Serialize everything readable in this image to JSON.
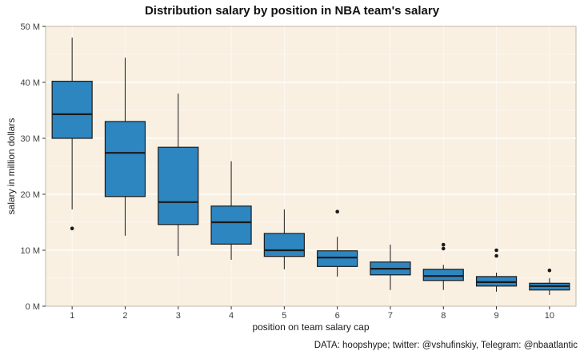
{
  "caption": "DATA: hoopshype; twitter: @vshufinskiy, Telegram: @nbaatlantic",
  "chart_data": {
    "type": "boxplot",
    "title": "Distribution salary by position in NBA team's salary",
    "xlabel": "position on team salary cap",
    "ylabel": "salary in million dollars",
    "ylim": [
      0,
      50
    ],
    "y_ticks": [
      0,
      10,
      20,
      30,
      40,
      50
    ],
    "y_tick_labels": [
      "0 M",
      "10 M",
      "20 M",
      "30 M",
      "40 M",
      "50 M"
    ],
    "categories": [
      "1",
      "2",
      "3",
      "4",
      "5",
      "6",
      "7",
      "8",
      "9",
      "10"
    ],
    "grid": true,
    "legend": false,
    "colors": {
      "box_fill": "#2e86c1",
      "box_stroke": "#1a1a1a",
      "median": "#1a1a1a",
      "outlier": "#1a1a1a",
      "panel_bg": "#faf0e2",
      "panel_border": "#bfb7aa",
      "gridline": "#ffffff"
    },
    "series": [
      {
        "position": "1",
        "whisker_low": 17.3,
        "q1": 30.0,
        "median": 34.3,
        "q3": 40.2,
        "whisker_high": 48.0,
        "outliers": [
          13.9
        ]
      },
      {
        "position": "2",
        "whisker_low": 12.6,
        "q1": 19.6,
        "median": 27.4,
        "q3": 33.0,
        "whisker_high": 44.4,
        "outliers": []
      },
      {
        "position": "3",
        "whisker_low": 9.0,
        "q1": 14.6,
        "median": 18.6,
        "q3": 28.4,
        "whisker_high": 38.0,
        "outliers": []
      },
      {
        "position": "4",
        "whisker_low": 8.3,
        "q1": 11.1,
        "median": 15.0,
        "q3": 17.9,
        "whisker_high": 25.9,
        "outliers": []
      },
      {
        "position": "5",
        "whisker_low": 6.6,
        "q1": 8.9,
        "median": 10.0,
        "q3": 13.0,
        "whisker_high": 17.3,
        "outliers": []
      },
      {
        "position": "6",
        "whisker_low": 5.3,
        "q1": 7.1,
        "median": 8.7,
        "q3": 9.9,
        "whisker_high": 12.4,
        "outliers": [
          16.9
        ]
      },
      {
        "position": "7",
        "whisker_low": 2.9,
        "q1": 5.6,
        "median": 6.7,
        "q3": 7.9,
        "whisker_high": 11.0,
        "outliers": []
      },
      {
        "position": "8",
        "whisker_low": 2.9,
        "q1": 4.6,
        "median": 5.4,
        "q3": 6.6,
        "whisker_high": 7.4,
        "outliers": [
          10.3,
          11.0
        ]
      },
      {
        "position": "9",
        "whisker_low": 2.6,
        "q1": 3.6,
        "median": 4.3,
        "q3": 5.3,
        "whisker_high": 6.0,
        "outliers": [
          9.0,
          10.0
        ]
      },
      {
        "position": "10",
        "whisker_low": 2.0,
        "q1": 2.9,
        "median": 3.6,
        "q3": 4.1,
        "whisker_high": 5.0,
        "outliers": [
          6.4
        ]
      }
    ]
  }
}
